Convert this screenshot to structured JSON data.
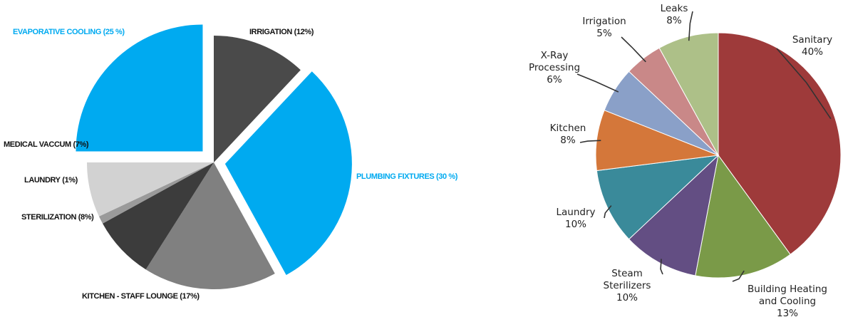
{
  "chart_data": [
    {
      "type": "pie",
      "categories": [
        "IRRIGATION",
        "PLUMBING FIXTURES",
        "KITCHEN - STAFF LOUNGE",
        "STERILIZATION",
        "LAUNDRY",
        "MEDICAL VACCUM",
        "EVAPORATIVE COOLING"
      ],
      "values": [
        12,
        30,
        17,
        8,
        1,
        7,
        25
      ],
      "value_labels": [
        "(12%)",
        "(30 %)",
        "(17%)",
        "(8%)",
        "(1%)",
        "(7%)",
        "(25 %)"
      ],
      "colors": [
        "#4a4a4a",
        "#00aaf0",
        "#808080",
        "#3c3c3c",
        "#9a9a9a",
        "#d2d2d2",
        "#00aaf0"
      ]
    },
    {
      "type": "pie",
      "categories": [
        "Sanitary",
        "Building Heating and Cooling",
        "Steam Sterilizers",
        "Laundry",
        "Kitchen",
        "X-Ray Processing",
        "Irrigation",
        "Leaks"
      ],
      "values": [
        40,
        13,
        10,
        10,
        8,
        6,
        5,
        8
      ],
      "value_labels": [
        "40%",
        "13%",
        "10%",
        "10%",
        "8%",
        "6%",
        "5%",
        "8%"
      ],
      "colors": [
        "#9e3a3a",
        "#7a9a48",
        "#634e83",
        "#3a8a9a",
        "#d4773a",
        "#8aa0c8",
        "#c98888",
        "#adc088"
      ]
    }
  ]
}
